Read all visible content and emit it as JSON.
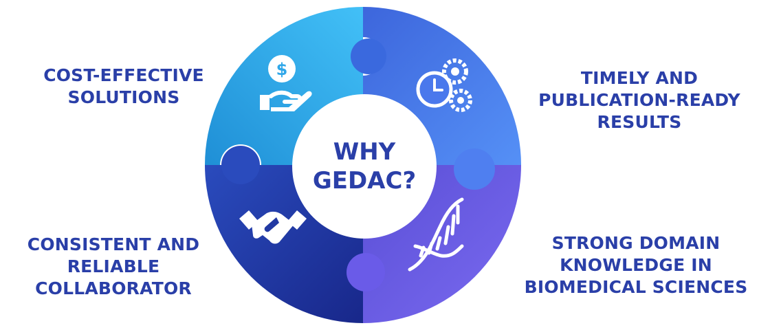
{
  "center": {
    "line1": "WHY",
    "line2": "GEDAC?"
  },
  "segments": [
    {
      "position": "top-left",
      "label_lines": [
        "COST-EFFECTIVE",
        "SOLUTIONS"
      ],
      "icon": "hand-dollar-coin-icon",
      "color": "#2fa7e9"
    },
    {
      "position": "top-right",
      "label_lines": [
        "TIMELY AND",
        "PUBLICATION-READY",
        "RESULTS"
      ],
      "icon": "clock-gears-icon",
      "color": "#4a78ec"
    },
    {
      "position": "bottom-left",
      "label_lines": [
        "CONSISTENT AND",
        "RELIABLE",
        "COLLABORATOR"
      ],
      "icon": "handshake-icon",
      "color": "#2239a3"
    },
    {
      "position": "bottom-right",
      "label_lines": [
        "STRONG DOMAIN",
        "KNOWLEDGE IN",
        "BIOMEDICAL SCIENCES"
      ],
      "icon": "dna-icon",
      "color": "#6a5be8"
    }
  ],
  "colors": {
    "text": "#2a3fa8",
    "center_fill": "#ffffff"
  }
}
